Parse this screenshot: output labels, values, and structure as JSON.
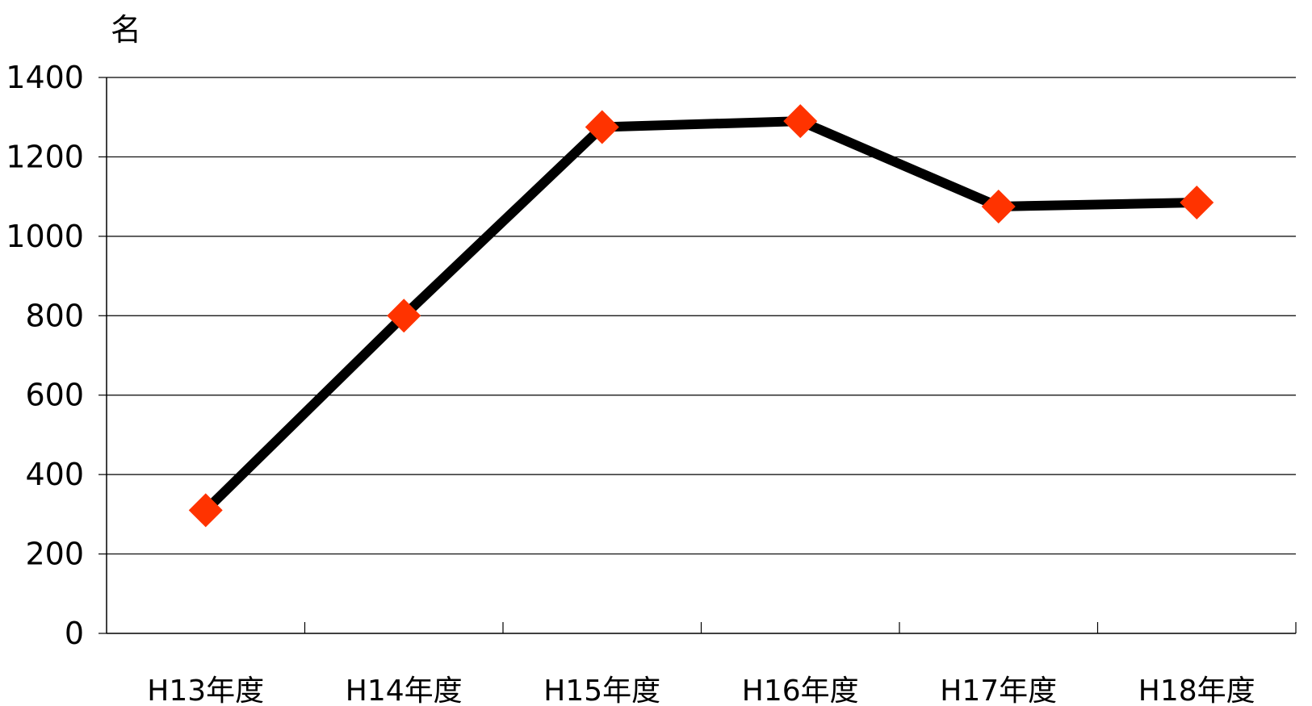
{
  "chart_data": {
    "type": "line",
    "title": "",
    "xlabel": "",
    "ylabel": "名",
    "categories": [
      "H13年度",
      "H14年度",
      "H15年度",
      "H16年度",
      "H17年度",
      "H18年度"
    ],
    "series": [
      {
        "values": [
          310,
          800,
          1275,
          1290,
          1075,
          1085
        ]
      }
    ],
    "ylim": [
      0,
      1400
    ],
    "yticks": [
      0,
      200,
      400,
      600,
      800,
      1000,
      1200,
      1400
    ],
    "grid": true,
    "legend": "none",
    "colors": {
      "line": "#000000",
      "marker": "#ff3300",
      "grid": "#000000"
    }
  }
}
